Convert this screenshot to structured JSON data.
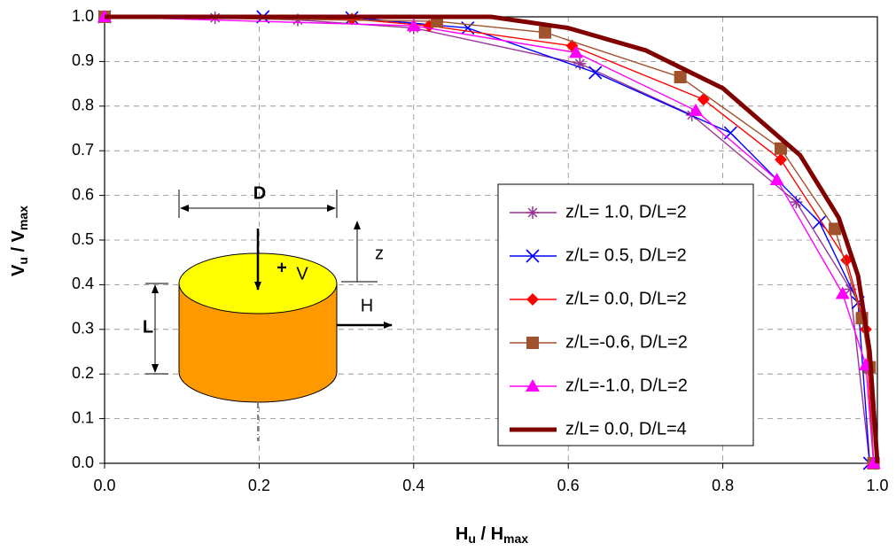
{
  "chart_data": {
    "type": "line",
    "xlabel": {
      "main1": "H",
      "sub1": "u",
      "sep": " / H",
      "sub2": "max"
    },
    "ylabel": {
      "main1": "V",
      "sub1": "u",
      "sep": " / V",
      "sub2": "max"
    },
    "annotations": {
      "d": "D",
      "v": "V",
      "plus": "+",
      "z": "z",
      "l": "L",
      "h": "H"
    },
    "xlim": [
      0,
      1
    ],
    "ylim": [
      0,
      1
    ],
    "xticks": [
      {
        "value": 0,
        "label": "0.0"
      },
      {
        "value": 0.2,
        "label": "0.2"
      },
      {
        "value": 0.4,
        "label": "0.4"
      },
      {
        "value": 0.6,
        "label": "0.6"
      },
      {
        "value": 0.8,
        "label": "0.8"
      },
      {
        "value": 1,
        "label": "1.0"
      }
    ],
    "yticks": [
      {
        "value": 0,
        "label": "0.0"
      },
      {
        "value": 0.1,
        "label": "0.1"
      },
      {
        "value": 0.2,
        "label": "0.2"
      },
      {
        "value": 0.3,
        "label": "0.3"
      },
      {
        "value": 0.4,
        "label": "0.4"
      },
      {
        "value": 0.5,
        "label": "0.5"
      },
      {
        "value": 0.6,
        "label": "0.6"
      },
      {
        "value": 0.7,
        "label": "0.7"
      },
      {
        "value": 0.8,
        "label": "0.8"
      },
      {
        "value": 0.9,
        "label": "0.9"
      },
      {
        "value": 1,
        "label": "1.0"
      }
    ],
    "grid": true,
    "series": [
      {
        "name": "z/L= 1.0, D/L=2",
        "color": "#993399",
        "marker": "asterisk",
        "x": [
          0,
          0.143,
          0.25,
          0.4,
          0.615,
          0.76,
          0.895,
          0.965,
          0.99
        ],
        "values": [
          1.0,
          0.998,
          0.993,
          0.975,
          0.895,
          0.78,
          0.585,
          0.39,
          0.0
        ]
      },
      {
        "name": "z/L= 0.5, D/L=2",
        "color": "#0000ff",
        "marker": "x",
        "x": [
          0,
          0.205,
          0.32,
          0.47,
          0.635,
          0.81,
          0.925,
          0.975,
          0.99
        ],
        "values": [
          1.0,
          1.0,
          0.998,
          0.975,
          0.875,
          0.74,
          0.54,
          0.36,
          0.0
        ]
      },
      {
        "name": "z/L= 0.0, D/L=2",
        "color": "#ff0000",
        "marker": "diamond",
        "x": [
          0,
          0.32,
          0.42,
          0.605,
          0.775,
          0.875,
          0.96,
          0.985,
          0.995
        ],
        "values": [
          1.0,
          0.995,
          0.98,
          0.935,
          0.815,
          0.68,
          0.455,
          0.3,
          0.0
        ]
      },
      {
        "name": "z/L=-0.6, D/L=2",
        "color": "#a0522d",
        "marker": "square",
        "x": [
          0,
          0.43,
          0.57,
          0.745,
          0.875,
          0.945,
          0.98,
          0.99,
          0.995
        ],
        "values": [
          1.0,
          0.99,
          0.965,
          0.865,
          0.705,
          0.525,
          0.325,
          0.215,
          0.0
        ]
      },
      {
        "name": "z/L=-1.0, D/L=2",
        "color": "#ff00ff",
        "marker": "triangle",
        "x": [
          0,
          0.4,
          0.61,
          0.765,
          0.87,
          0.955,
          0.985,
          0.995
        ],
        "values": [
          1.0,
          0.98,
          0.92,
          0.79,
          0.635,
          0.38,
          0.22,
          0.0
        ]
      },
      {
        "name": "z/L= 0.0, D/L=4",
        "color": "#800000",
        "marker": "none",
        "x": [
          0,
          0.2,
          0.4,
          0.5,
          0.6,
          0.7,
          0.8,
          0.9,
          0.95,
          0.975,
          0.99,
          1.0
        ],
        "values": [
          1.0,
          1.0,
          1.0,
          1.0,
          0.975,
          0.925,
          0.84,
          0.69,
          0.55,
          0.42,
          0.25,
          0.0
        ]
      }
    ]
  }
}
